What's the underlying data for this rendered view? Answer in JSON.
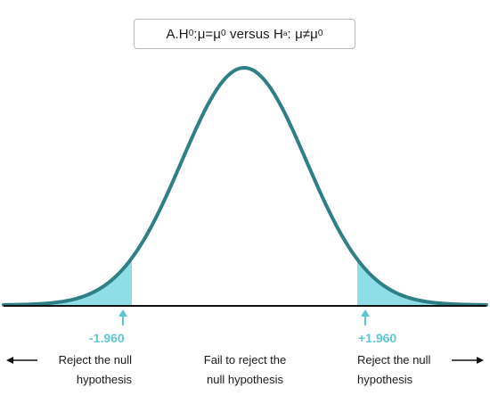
{
  "title": {
    "prefix": "A.H",
    "h0_sub": "0",
    "eq": ":μ=μ",
    "mu0_sub": "0",
    "versus": " versus H",
    "ha_sub": "a",
    "neq": ": μ≠μ",
    "mu0_sub2": "0"
  },
  "critical_values": {
    "left": "-1.960",
    "right": "+1.960"
  },
  "regions": {
    "left": {
      "line1": "Reject the null",
      "line2": "hypothesis"
    },
    "center": {
      "line1": "Fail to reject the",
      "line2": "null hypothesis"
    },
    "right": {
      "line1": "Reject the null",
      "line2": "hypothesis"
    }
  },
  "icons": {
    "left_arrow": "arrow-left-icon",
    "right_arrow": "arrow-right-icon",
    "up_arrow": "arrow-up-icon"
  },
  "colors": {
    "curve": "#2e7f86",
    "rejection_fill": "#8fdde7",
    "critical_value": "#5fc6d5",
    "axis": "#111111",
    "text": "#1a1a1a"
  }
}
